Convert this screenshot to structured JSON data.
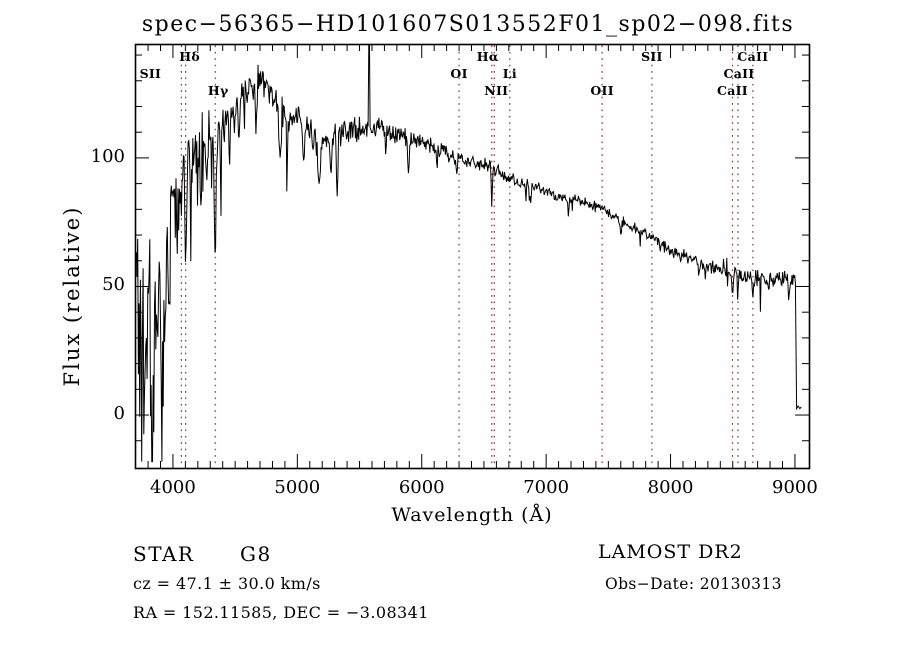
{
  "title": "spec−56365−HD101607S013552F01_sp02−098.fits",
  "annotations": {
    "left": {
      "classification": "STAR",
      "subclass": "G8",
      "cz_line": "cz = 47.1 ± 30.0 km/s",
      "radec_line": "RA = 152.11585, DEC = −3.08341"
    },
    "right": {
      "survey": "LAMOST DR2",
      "obs_date_line": "Obs−Date: 20130313"
    }
  },
  "chart_data": {
    "type": "line",
    "title": "spec−56365−HD101607S013552F01_sp02−098.fits",
    "xlabel": "Wavelength (Å)",
    "ylabel": "Flux (relative)",
    "xlim": [
      3695,
      9113
    ],
    "ylim": [
      -20.6,
      144.3
    ],
    "x_major_ticks": [
      4000,
      5000,
      6000,
      7000,
      8000,
      9000
    ],
    "x_minor_step": 100,
    "y_major_ticks": [
      0,
      50,
      100
    ],
    "y_minor_step": 10,
    "grid": "off",
    "legend": "none",
    "line_color": "#000000",
    "marker_color": "#8B3030",
    "spectral_lines": [
      {
        "label": "Hδ",
        "wavelength": 4102,
        "row": 1,
        "dx": 4
      },
      {
        "label": "SII",
        "wavelength": 4068,
        "row": 2,
        "dx": -31
      },
      {
        "label": "Hγ",
        "wavelength": 4340,
        "row": 3,
        "dx": 3
      },
      {
        "label": "OI",
        "wavelength": 6300,
        "row": 2,
        "dx": 0
      },
      {
        "label": "Hα",
        "wavelength": 6563,
        "row": 1,
        "dx": -4
      },
      {
        "label": "NII",
        "wavelength": 6583,
        "row": 3,
        "dx": 2
      },
      {
        "label": "Li",
        "wavelength": 6708,
        "row": 2,
        "dx": 0
      },
      {
        "label": "OII",
        "wavelength": 7450,
        "row": 3,
        "dx": 0
      },
      {
        "label": "SII",
        "wavelength": 7850,
        "row": 1,
        "dx": 0
      },
      {
        "label": "CaII",
        "wavelength": 8498,
        "row": 3,
        "dx": 0
      },
      {
        "label": "CaII",
        "wavelength": 8542,
        "row": 2,
        "dx": 1
      },
      {
        "label": "CaII",
        "wavelength": 8662,
        "row": 1,
        "dx": 0
      }
    ],
    "spectrum_start": 3706,
    "sample_step": 5.4,
    "noise_seed": 42,
    "continuum": [
      [
        3706,
        62
      ],
      [
        3730,
        58
      ],
      [
        3760,
        52
      ],
      [
        3800,
        56
      ],
      [
        3840,
        52
      ],
      [
        3880,
        57
      ],
      [
        3920,
        62
      ],
      [
        3960,
        72
      ],
      [
        4000,
        88
      ],
      [
        4040,
        96
      ],
      [
        4080,
        100
      ],
      [
        4130,
        102
      ],
      [
        4190,
        104
      ],
      [
        4260,
        107
      ],
      [
        4330,
        109
      ],
      [
        4400,
        113
      ],
      [
        4500,
        120
      ],
      [
        4600,
        126
      ],
      [
        4680,
        130
      ],
      [
        4760,
        129
      ],
      [
        4830,
        123
      ],
      [
        4900,
        117
      ],
      [
        5000,
        114
      ],
      [
        5080,
        112
      ],
      [
        5180,
        105
      ],
      [
        5260,
        108
      ],
      [
        5360,
        109
      ],
      [
        5460,
        111
      ],
      [
        5560,
        112
      ],
      [
        5680,
        112
      ],
      [
        5780,
        110
      ],
      [
        5880,
        108
      ],
      [
        5980,
        107
      ],
      [
        6080,
        105
      ],
      [
        6180,
        102
      ],
      [
        6280,
        100
      ],
      [
        6400,
        98
      ],
      [
        6520,
        97
      ],
      [
        6640,
        94
      ],
      [
        6760,
        91
      ],
      [
        6900,
        89
      ],
      [
        7050,
        86
      ],
      [
        7200,
        84
      ],
      [
        7350,
        82
      ],
      [
        7500,
        79
      ],
      [
        7700,
        73
      ],
      [
        7850,
        69
      ],
      [
        8000,
        64
      ],
      [
        8150,
        61
      ],
      [
        8300,
        58
      ],
      [
        8450,
        55
      ],
      [
        8600,
        53
      ],
      [
        8750,
        52
      ],
      [
        8900,
        54
      ],
      [
        9008,
        52
      ]
    ],
    "noise_amplitude": [
      [
        3706,
        20
      ],
      [
        3800,
        18
      ],
      [
        3900,
        15
      ],
      [
        3980,
        12
      ],
      [
        4050,
        10
      ],
      [
        4150,
        9
      ],
      [
        4300,
        8
      ],
      [
        4450,
        7.5
      ],
      [
        4600,
        7
      ],
      [
        4800,
        6.5
      ],
      [
        5000,
        5.5
      ],
      [
        5200,
        5
      ],
      [
        5450,
        4.5
      ],
      [
        5700,
        4
      ],
      [
        6000,
        3.2
      ],
      [
        6300,
        2.8
      ],
      [
        6600,
        2.4
      ],
      [
        6900,
        2.2
      ],
      [
        7300,
        2
      ],
      [
        7800,
        2
      ],
      [
        8200,
        2.4
      ],
      [
        8500,
        3
      ],
      [
        8800,
        3.5
      ],
      [
        9008,
        3
      ]
    ],
    "absorption_features": [
      [
        3745,
        36,
        9
      ],
      [
        3788,
        40,
        8
      ],
      [
        3835,
        44,
        8
      ],
      [
        3872,
        34,
        7
      ],
      [
        3910,
        40,
        8
      ],
      [
        3934,
        44,
        7
      ],
      [
        3969,
        36,
        7
      ],
      [
        4046,
        20,
        6
      ],
      [
        4068,
        24,
        6
      ],
      [
        4102,
        45,
        7
      ],
      [
        4144,
        20,
        6
      ],
      [
        4227,
        26,
        6
      ],
      [
        4272,
        18,
        6
      ],
      [
        4340,
        48,
        7
      ],
      [
        4383,
        22,
        6
      ],
      [
        4455,
        18,
        6
      ],
      [
        4530,
        15,
        6
      ],
      [
        4668,
        20,
        5
      ],
      [
        4861,
        26,
        7
      ],
      [
        4920,
        15,
        6
      ],
      [
        5050,
        12,
        6
      ],
      [
        5175,
        17,
        10
      ],
      [
        5270,
        13,
        7
      ],
      [
        5320,
        24,
        5
      ],
      [
        5710,
        10,
        5
      ],
      [
        5893,
        14,
        7
      ],
      [
        6122,
        8,
        5
      ],
      [
        6280,
        6,
        5
      ],
      [
        6563,
        15,
        4
      ],
      [
        6870,
        7,
        6
      ],
      [
        7180,
        6,
        5
      ],
      [
        7600,
        7,
        6
      ],
      [
        8230,
        6,
        5
      ],
      [
        8498,
        7,
        4
      ],
      [
        8542,
        8,
        4
      ],
      [
        8662,
        7,
        4
      ],
      [
        8950,
        8,
        5
      ]
    ],
    "emission_spikes": [
      [
        5577,
        143.8
      ]
    ],
    "edge_drop": {
      "wavelength": 9008,
      "tail": [
        [
          9013,
          2.5
        ],
        [
          9025,
          3.5
        ],
        [
          9040,
          2.5
        ],
        [
          9052,
          3.2
        ]
      ]
    }
  }
}
